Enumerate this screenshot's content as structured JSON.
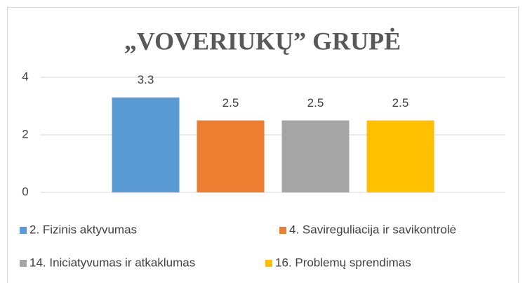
{
  "chart_data": {
    "type": "bar",
    "title": "„VOVERIUKŲ” GRUPĖ",
    "categories": [
      null
    ],
    "series": [
      {
        "name": "2. Fizinis aktyvumas",
        "color": "#5b9bd5",
        "values": [
          3.3
        ]
      },
      {
        "name": "4. Savireguliacija ir savikontrolė",
        "color": "#ed7d31",
        "values": [
          2.5
        ]
      },
      {
        "name": "14. Iniciatyvumas ir atkaklumas",
        "color": "#a5a5a5",
        "values": [
          2.5
        ]
      },
      {
        "name": "16. Problemų sprendimas",
        "color": "#ffc000",
        "values": [
          2.5
        ]
      }
    ],
    "ylim": [
      0,
      4
    ],
    "yticks": [
      0,
      2,
      4
    ],
    "grid": true,
    "legend": "bottom"
  }
}
